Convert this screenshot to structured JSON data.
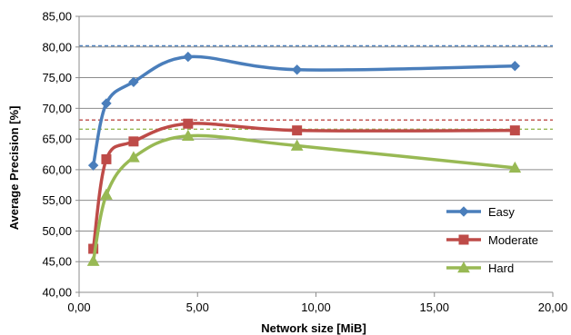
{
  "chart_data": {
    "type": "line",
    "title": "",
    "xlabel": "Network size [MiB]",
    "ylabel": "Average Precision [%]",
    "xlim": [
      0,
      20
    ],
    "ylim": [
      40,
      85
    ],
    "x_ticks": [
      "0,00",
      "5,00",
      "10,00",
      "15,00",
      "20,00"
    ],
    "y_ticks": [
      "40,00",
      "45,00",
      "50,00",
      "55,00",
      "60,00",
      "65,00",
      "70,00",
      "75,00",
      "80,00",
      "85,00"
    ],
    "grid": true,
    "legend_position": "right",
    "series": [
      {
        "name": "Easy",
        "color": "#4a7ebb",
        "marker": "diamond",
        "x": [
          0.6,
          1.15,
          2.3,
          4.6,
          9.2,
          18.4
        ],
        "y": [
          60.7,
          70.8,
          74.3,
          78.4,
          76.3,
          76.9
        ],
        "reference": 80.2
      },
      {
        "name": "Moderate",
        "color": "#be4b48",
        "marker": "square",
        "x": [
          0.6,
          1.15,
          2.3,
          4.6,
          9.2,
          18.4
        ],
        "y": [
          47.1,
          61.7,
          64.6,
          67.5,
          66.4,
          66.4
        ],
        "reference": 68.1
      },
      {
        "name": "Hard",
        "color": "#98b954",
        "marker": "triangle",
        "x": [
          0.6,
          1.15,
          2.3,
          4.6,
          9.2,
          18.4
        ],
        "y": [
          45.1,
          55.9,
          62.0,
          65.5,
          63.9,
          60.3
        ],
        "reference": 66.6
      }
    ]
  }
}
